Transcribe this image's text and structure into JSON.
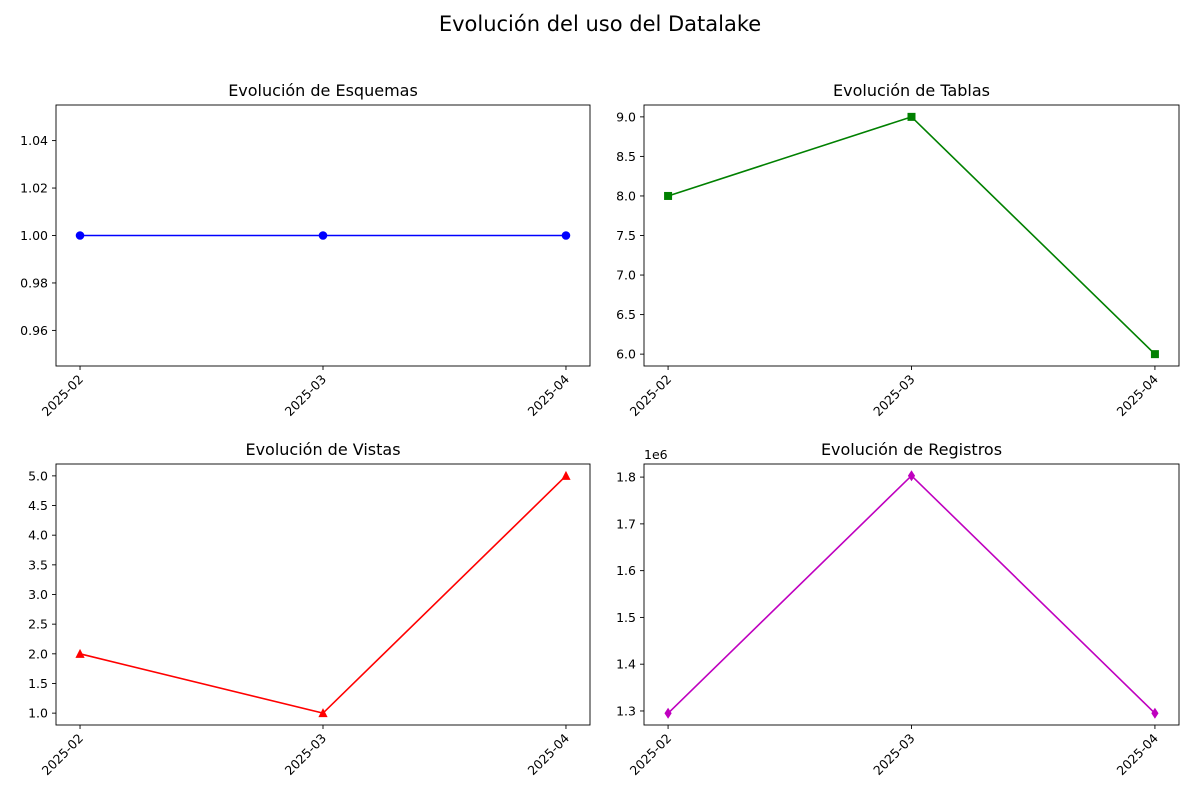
{
  "figure": {
    "title": "Evolución del uso del Datalake"
  },
  "chart_data": [
    {
      "type": "line",
      "title": "Evolución de Esquemas",
      "categories": [
        "2025-02",
        "2025-03",
        "2025-04"
      ],
      "values": [
        1,
        1,
        1
      ],
      "ylim": [
        0.945,
        1.055
      ],
      "yticks": [
        0.96,
        0.98,
        1.0,
        1.02,
        1.04
      ],
      "ytick_labels": [
        "0.96",
        "0.98",
        "1.00",
        "1.02",
        "1.04"
      ],
      "offset_label": "",
      "color": "#0000ff",
      "marker": "circle"
    },
    {
      "type": "line",
      "title": "Evolución de Tablas",
      "categories": [
        "2025-02",
        "2025-03",
        "2025-04"
      ],
      "values": [
        8,
        9,
        6
      ],
      "ylim": [
        5.85,
        9.15
      ],
      "yticks": [
        6.0,
        6.5,
        7.0,
        7.5,
        8.0,
        8.5,
        9.0
      ],
      "ytick_labels": [
        "6.0",
        "6.5",
        "7.0",
        "7.5",
        "8.0",
        "8.5",
        "9.0"
      ],
      "offset_label": "",
      "color": "#008000",
      "marker": "square"
    },
    {
      "type": "line",
      "title": "Evolución de Vistas",
      "categories": [
        "2025-02",
        "2025-03",
        "2025-04"
      ],
      "values": [
        2,
        1,
        5
      ],
      "ylim": [
        0.8,
        5.2
      ],
      "yticks": [
        1.0,
        1.5,
        2.0,
        2.5,
        3.0,
        3.5,
        4.0,
        4.5,
        5.0
      ],
      "ytick_labels": [
        "1.0",
        "1.5",
        "2.0",
        "2.5",
        "3.0",
        "3.5",
        "4.0",
        "4.5",
        "5.0"
      ],
      "offset_label": "",
      "color": "#ff0000",
      "marker": "triangle"
    },
    {
      "type": "line",
      "title": "Evolución de Registros",
      "categories": [
        "2025-02",
        "2025-03",
        "2025-04"
      ],
      "values": [
        1295000,
        1803000,
        1295000
      ],
      "ylim": [
        1270000,
        1828000
      ],
      "yticks": [
        1300000,
        1400000,
        1500000,
        1600000,
        1700000,
        1800000
      ],
      "ytick_labels": [
        "1.3",
        "1.4",
        "1.5",
        "1.6",
        "1.7",
        "1.8"
      ],
      "offset_label": "1e6",
      "color": "#bf00bf",
      "marker": "diamond"
    }
  ]
}
